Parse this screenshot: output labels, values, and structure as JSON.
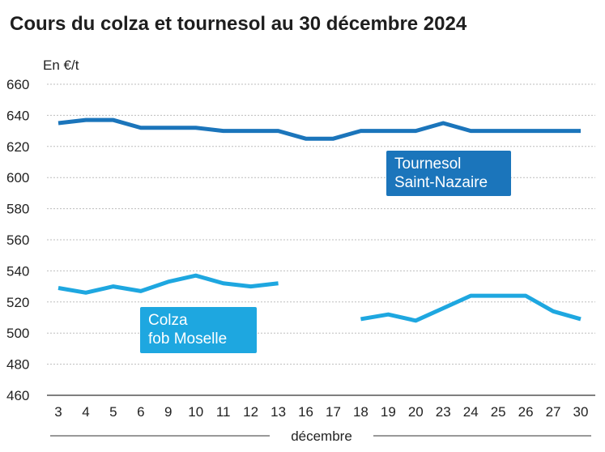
{
  "chart_data": {
    "type": "line",
    "title": "Cours du colza et tournesol au 30 décembre 2024",
    "ylabel": "En €/t",
    "xlabel": "décembre",
    "ylim": [
      460,
      660
    ],
    "yticks": [
      460,
      480,
      500,
      520,
      540,
      560,
      580,
      600,
      620,
      640,
      660
    ],
    "categories": [
      "3",
      "4",
      "5",
      "6",
      "9",
      "10",
      "11",
      "12",
      "13",
      "16",
      "17",
      "18",
      "19",
      "20",
      "23",
      "24",
      "25",
      "26",
      "27",
      "30"
    ],
    "grid": true,
    "series": [
      {
        "name": "Tournesol Saint-Nazaire",
        "label_lines": [
          "Tournesol",
          "Saint-Nazaire"
        ],
        "color": "#1b75bb",
        "values": [
          635,
          637,
          637,
          632,
          632,
          632,
          630,
          630,
          630,
          625,
          625,
          630,
          630,
          630,
          635,
          630,
          630,
          630,
          630,
          630
        ]
      },
      {
        "name": "Colza fob Moselle",
        "label_lines": [
          "Colza",
          "fob Moselle"
        ],
        "color": "#1ea7e0",
        "values": [
          529,
          526,
          530,
          527,
          533,
          537,
          532,
          530,
          532,
          null,
          null,
          509,
          512,
          508,
          516,
          524,
          524,
          524,
          514,
          509
        ]
      }
    ]
  }
}
